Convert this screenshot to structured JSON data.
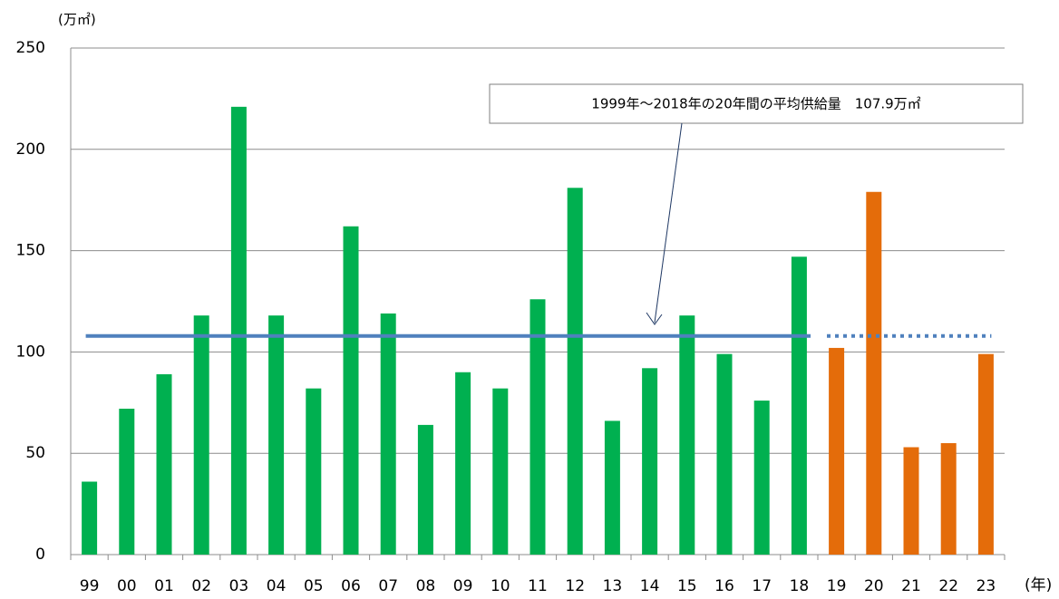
{
  "chart_data": {
    "type": "bar",
    "y_axis_label": "(万㎡)",
    "x_axis_label": "(年)",
    "categories": [
      "99",
      "00",
      "01",
      "02",
      "03",
      "04",
      "05",
      "06",
      "07",
      "08",
      "09",
      "10",
      "11",
      "12",
      "13",
      "14",
      "15",
      "16",
      "17",
      "18",
      "19",
      "20",
      "21",
      "22",
      "23"
    ],
    "values": [
      36,
      72,
      89,
      118,
      221,
      118,
      82,
      162,
      119,
      64,
      90,
      82,
      126,
      181,
      66,
      92,
      118,
      99,
      76,
      147,
      102,
      179,
      53,
      55,
      99
    ],
    "colors": [
      "#00b050",
      "#00b050",
      "#00b050",
      "#00b050",
      "#00b050",
      "#00b050",
      "#00b050",
      "#00b050",
      "#00b050",
      "#00b050",
      "#00b050",
      "#00b050",
      "#00b050",
      "#00b050",
      "#00b050",
      "#00b050",
      "#00b050",
      "#00b050",
      "#00b050",
      "#00b050",
      "#e46c0a",
      "#e46c0a",
      "#e46c0a",
      "#e46c0a",
      "#e46c0a"
    ],
    "ylim": [
      0,
      250
    ],
    "yticks": [
      0,
      50,
      100,
      150,
      200,
      250
    ],
    "grid": true,
    "reference_line": {
      "value": 107.9,
      "color": "#4f81bd"
    },
    "annotation": "1999年～2018年の20年間の平均供給量　107.9万㎡"
  }
}
